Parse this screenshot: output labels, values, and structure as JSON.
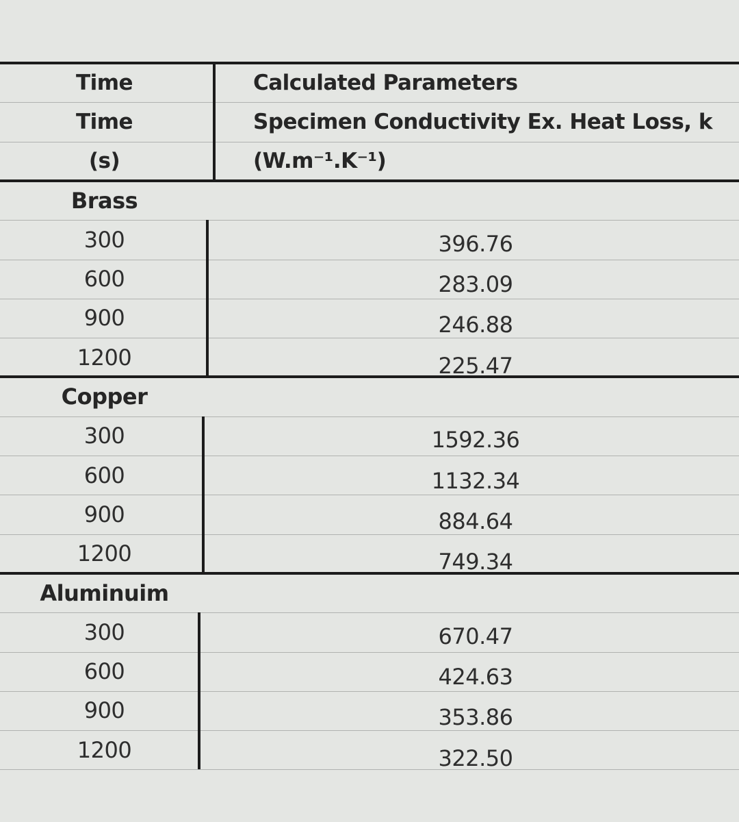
{
  "table": {
    "header": [
      [
        "Time",
        "Calculated Parameters"
      ],
      [
        "Time",
        "Specimen Conductivity Ex. Heat Loss, k"
      ],
      [
        "(s)",
        "(W.m⁻¹.K⁻¹)"
      ]
    ],
    "groups": [
      {
        "label": "Brass",
        "rows": [
          [
            "300",
            "396.76"
          ],
          [
            "600",
            "283.09"
          ],
          [
            "900",
            "246.88"
          ],
          [
            "1200",
            "225.47"
          ]
        ]
      },
      {
        "label": "Copper",
        "rows": [
          [
            "300",
            "1592.36"
          ],
          [
            "600",
            "1132.34"
          ],
          [
            "900",
            "884.64"
          ],
          [
            "1200",
            "749.34"
          ]
        ]
      },
      {
        "label": "Aluminuim",
        "rows": [
          [
            "300",
            "670.47"
          ],
          [
            "600",
            "424.63"
          ],
          [
            "900",
            "353.86"
          ],
          [
            "1200",
            "322.50"
          ]
        ]
      }
    ]
  }
}
